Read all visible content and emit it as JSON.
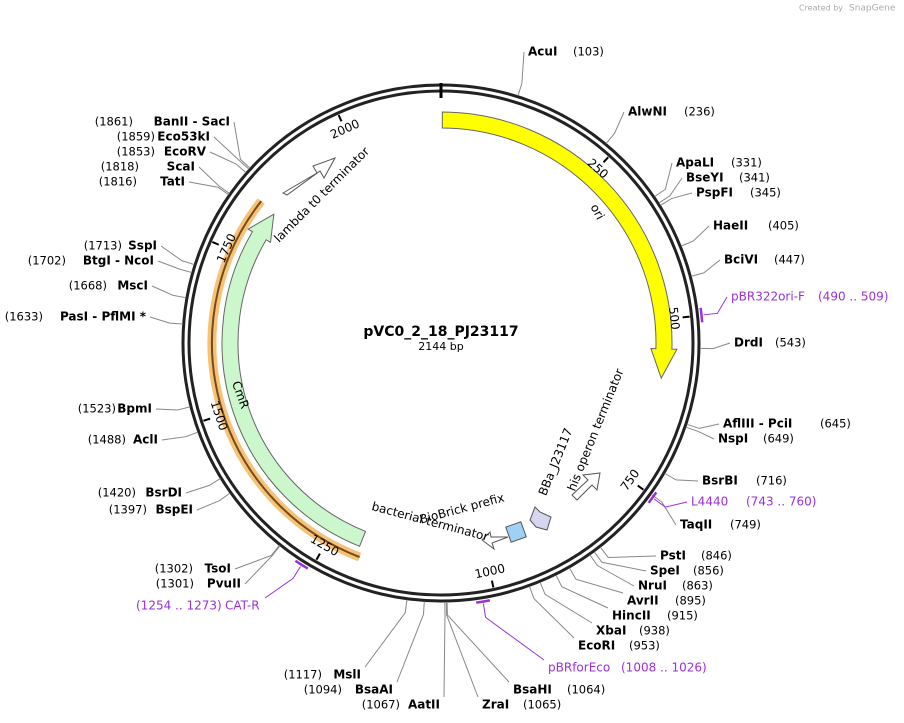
{
  "header": {
    "created_by": "Created by",
    "brand": "SnapGene"
  },
  "map": {
    "name": "pVC0_2_18_PJ23117",
    "length": "2144 bp",
    "ticks": [
      250,
      500,
      750,
      1000,
      1250,
      1500,
      1750,
      2000
    ],
    "enzymes": [
      {
        "name": "AcuI",
        "position": "(103)"
      },
      {
        "name": "AlwNI",
        "position": "(236)"
      },
      {
        "name": "ApaLI",
        "position": "(331)"
      },
      {
        "name": "BseYI",
        "position": "(341)"
      },
      {
        "name": "PspFI",
        "position": "(345)"
      },
      {
        "name": "HaeII",
        "position": "(405)"
      },
      {
        "name": "BciVI",
        "position": "(447)"
      },
      {
        "name": "DrdI",
        "position": "(543)"
      },
      {
        "name": "AflIII - PciI",
        "position": "(645)"
      },
      {
        "name": "NspI",
        "position": "(649)"
      },
      {
        "name": "BsrBI",
        "position": "(716)"
      },
      {
        "name": "TaqII",
        "position": "(749)"
      },
      {
        "name": "PstI",
        "position": "(846)"
      },
      {
        "name": "SpeI",
        "position": "(856)"
      },
      {
        "name": "NruI",
        "position": "(863)"
      },
      {
        "name": "AvrII",
        "position": "(895)"
      },
      {
        "name": "HincII",
        "position": "(915)"
      },
      {
        "name": "XbaI",
        "position": "(938)"
      },
      {
        "name": "EcoRI",
        "position": "(953)"
      },
      {
        "name": "BsaHI",
        "position": "(1064)"
      },
      {
        "name": "ZraI",
        "position": "(1065)"
      },
      {
        "name": "AatII",
        "position": "(1067)"
      },
      {
        "name": "BsaAI",
        "position": "(1094)"
      },
      {
        "name": "MslI",
        "position": "(1117)"
      },
      {
        "name": "PvuII",
        "position": "(1301)"
      },
      {
        "name": "TsoI",
        "position": "(1302)"
      },
      {
        "name": "BspEI",
        "position": "(1397)"
      },
      {
        "name": "BsrDI",
        "position": "(1420)"
      },
      {
        "name": "AclI",
        "position": "(1488)"
      },
      {
        "name": "BpmI",
        "position": "(1523)"
      },
      {
        "name": "PasI - PflMI *",
        "position": "(1633)"
      },
      {
        "name": "MscI",
        "position": "(1668)"
      },
      {
        "name": "BtgI - NcoI",
        "position": "(1702)"
      },
      {
        "name": "SspI",
        "position": "(1713)"
      },
      {
        "name": "TatI",
        "position": "(1816)"
      },
      {
        "name": "ScaI",
        "position": "(1818)"
      },
      {
        "name": "EcoRV",
        "position": "(1853)"
      },
      {
        "name": "Eco53kI",
        "position": "(1859)"
      },
      {
        "name": "BanII - SacI",
        "position": "(1861)"
      }
    ],
    "primers": [
      {
        "name": "pBR322ori-F",
        "range": "(490 .. 509)"
      },
      {
        "name": "L4440",
        "range": "(743 .. 760)"
      },
      {
        "name": "pBRforEco",
        "range": "(1008 .. 1026)"
      },
      {
        "name": "CAT-R",
        "range": "(1254 .. 1273)"
      }
    ],
    "features": [
      {
        "label": "ori"
      },
      {
        "label": "CmR"
      },
      {
        "label": "lambda t0 terminator"
      },
      {
        "label": "his operon terminator"
      },
      {
        "label": "BBa_J23117"
      },
      {
        "label": "BioBrick prefix"
      },
      {
        "label": "bacterial terminator"
      }
    ]
  }
}
